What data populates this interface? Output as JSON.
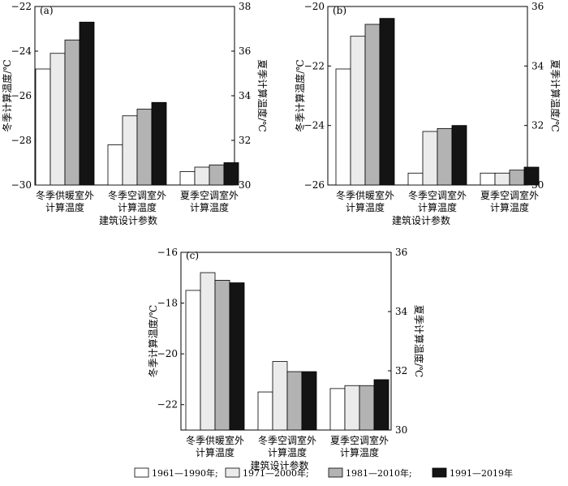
{
  "legend": {
    "entries": [
      "1961—1990年;",
      "1971—2000年;",
      "1981—2010年;",
      "1991—2019年"
    ],
    "colors": [
      "#ffffff",
      "#ebebeb",
      "#b3b3b3",
      "#141414"
    ]
  },
  "chart_data": [
    {
      "type": "bar",
      "panel_label": "(a)",
      "categories": [
        "冬季供暖室外\n计算温度",
        "冬季空调室外\n计算温度",
        "夏季空调室外\n计算温度"
      ],
      "xlabel": "建筑设计参数",
      "ylabel_left": "冬季计算温度/℃",
      "ylabel_right": "夏季计算温度/℃",
      "ylim_left": [
        -30,
        -22
      ],
      "ylim_right": [
        30,
        38
      ],
      "yticks_left": [
        "−30",
        "−28",
        "−26",
        "−24",
        "−22"
      ],
      "yticks_right": [
        "30",
        "32",
        "34",
        "36",
        "38"
      ],
      "series": [
        {
          "name": "1961—1990年",
          "values": [
            -24.8,
            -28.2,
            30.6
          ],
          "axis": [
            "left",
            "left",
            "right"
          ]
        },
        {
          "name": "1971—2000年",
          "values": [
            -24.1,
            -26.9,
            30.8
          ],
          "axis": [
            "left",
            "left",
            "right"
          ]
        },
        {
          "name": "1981—2010年",
          "values": [
            -23.5,
            -26.6,
            30.9
          ],
          "axis": [
            "left",
            "left",
            "right"
          ]
        },
        {
          "name": "1991—2019年",
          "values": [
            -22.7,
            -26.3,
            31.0
          ],
          "axis": [
            "left",
            "left",
            "right"
          ]
        }
      ]
    },
    {
      "type": "bar",
      "panel_label": "(b)",
      "categories": [
        "冬季供暖室外\n计算温度",
        "冬季空调室外\n计算温度",
        "夏季空调室外\n计算温度"
      ],
      "xlabel": "建筑设计参数",
      "ylabel_left": "冬季计算温度/℃",
      "ylabel_right": "夏季计算温度/℃",
      "ylim_left": [
        -26,
        -20
      ],
      "ylim_right": [
        30,
        36
      ],
      "yticks_left": [
        "−26",
        "−24",
        "−22",
        "−20"
      ],
      "yticks_right": [
        "30",
        "32",
        "34",
        "36"
      ],
      "series": [
        {
          "name": "1961—1990年",
          "values": [
            -22.1,
            -25.6,
            30.4
          ],
          "axis": [
            "left",
            "left",
            "right"
          ]
        },
        {
          "name": "1971—2000年",
          "values": [
            -21.0,
            -24.2,
            30.4
          ],
          "axis": [
            "left",
            "left",
            "right"
          ]
        },
        {
          "name": "1981—2010年",
          "values": [
            -20.6,
            -24.1,
            30.5
          ],
          "axis": [
            "left",
            "left",
            "right"
          ]
        },
        {
          "name": "1991—2019年",
          "values": [
            -20.4,
            -24.0,
            30.6
          ],
          "axis": [
            "left",
            "left",
            "right"
          ]
        }
      ]
    },
    {
      "type": "bar",
      "panel_label": "(c)",
      "categories": [
        "冬季供暖室外\n计算温度",
        "冬季空调室外\n计算温度",
        "夏季空调室外\n计算温度"
      ],
      "xlabel": "建筑设计参数",
      "ylabel_left": "冬季计算温度/℃",
      "ylabel_right": "夏季计算温度/℃",
      "ylim_left": [
        -23,
        -16
      ],
      "ylim_right": [
        30,
        36
      ],
      "yticks_left": [
        "−22",
        "−20",
        "−18",
        "−16"
      ],
      "yticks_right": [
        "30",
        "32",
        "34",
        "36"
      ],
      "series": [
        {
          "name": "1961—1990年",
          "values": [
            -17.5,
            -21.5,
            31.4
          ],
          "axis": [
            "left",
            "left",
            "right"
          ]
        },
        {
          "name": "1971—2000年",
          "values": [
            -16.8,
            -20.3,
            31.5
          ],
          "axis": [
            "left",
            "left",
            "right"
          ]
        },
        {
          "name": "1981—2010年",
          "values": [
            -17.1,
            -20.7,
            31.5
          ],
          "axis": [
            "left",
            "left",
            "right"
          ]
        },
        {
          "name": "1991—2019年",
          "values": [
            -17.2,
            -20.7,
            31.7
          ],
          "axis": [
            "left",
            "left",
            "right"
          ]
        }
      ]
    }
  ]
}
